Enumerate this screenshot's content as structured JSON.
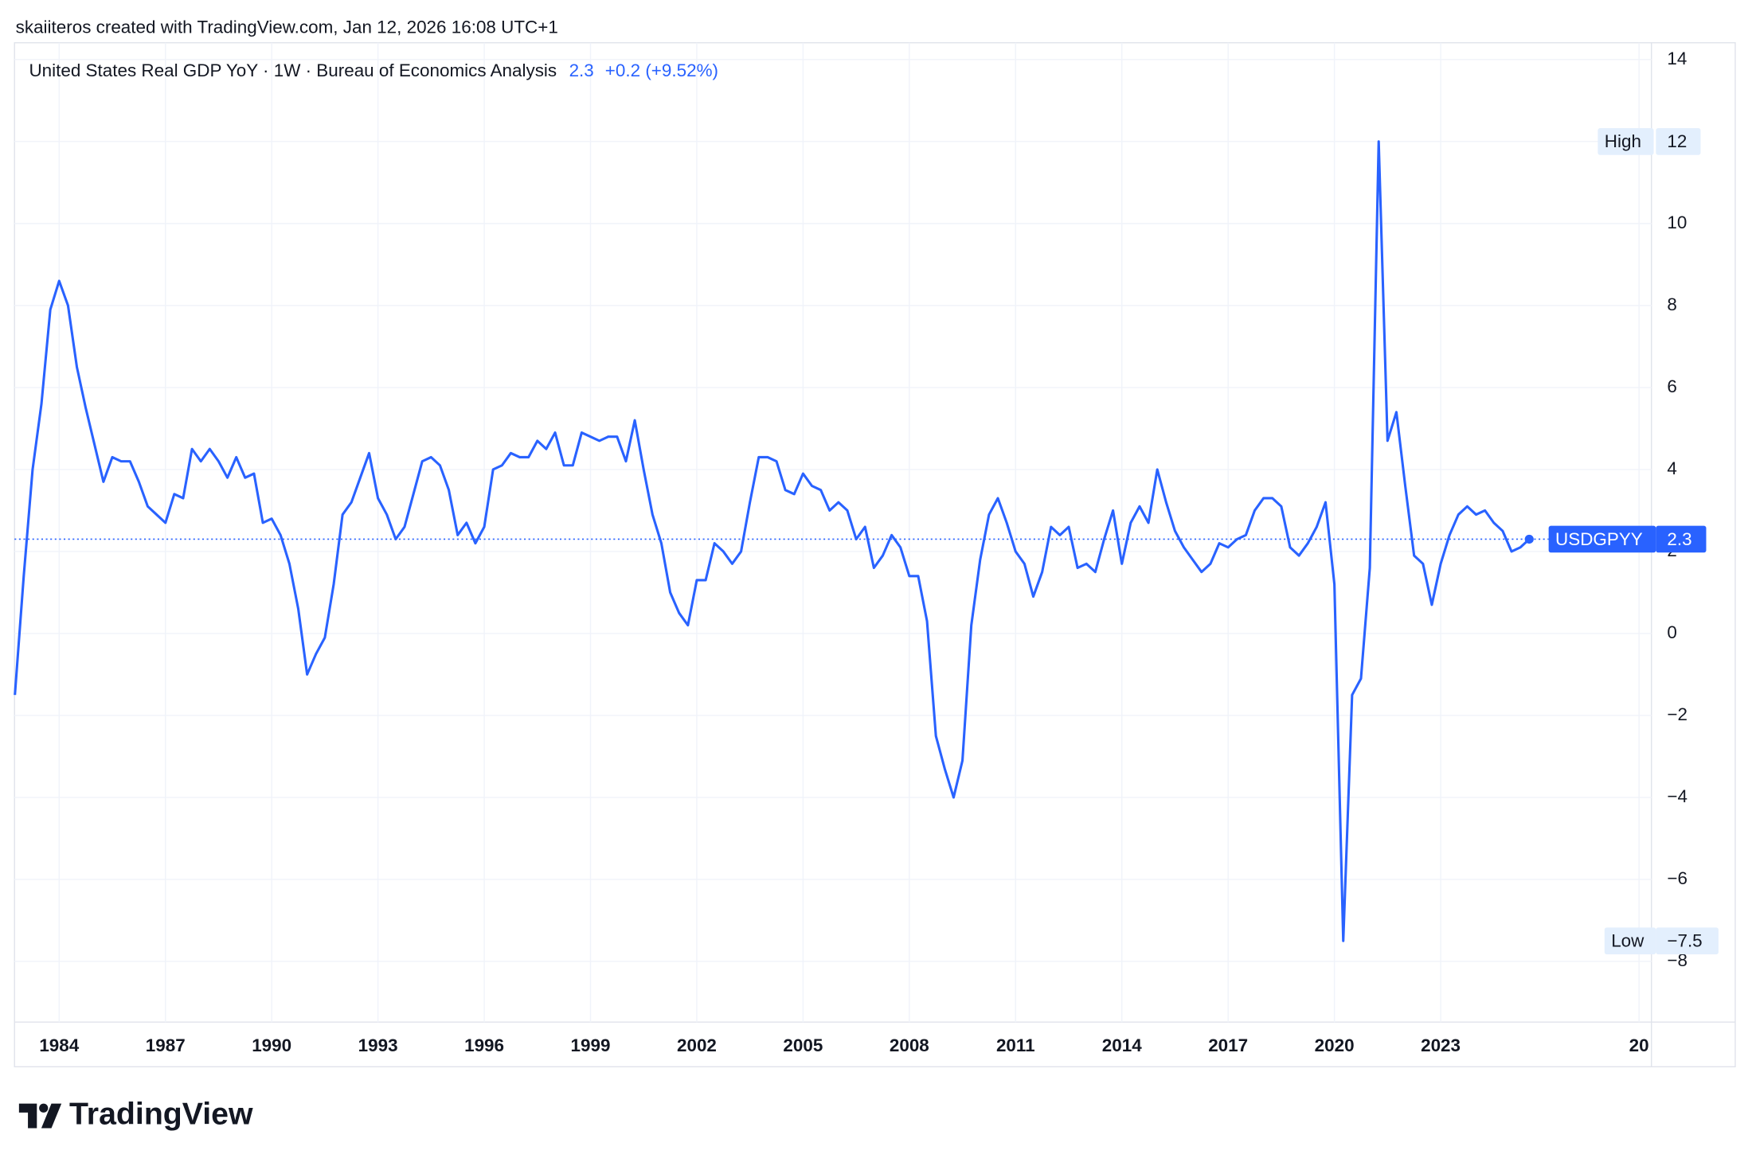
{
  "header": "skaiiteros created with TradingView.com, Jan 12, 2026 16:08 UTC+1",
  "footer": {
    "logo": "TradingView"
  },
  "chart_data": {
    "type": "line",
    "title": "United States Real GDP YoY · 1W · Bureau of Economics Analysis",
    "last_value": 2.3,
    "change_label": "+0.2 (+9.52%)",
    "color": "#2962ff",
    "grid": true,
    "xlim": [
      1982.74,
      2028.95
    ],
    "ylim": [
      -9.48,
      14.41
    ],
    "xticks": [
      1984,
      1987,
      1990,
      1993,
      1996,
      1999,
      2002,
      2005,
      2008,
      2011,
      2014,
      2017,
      2020,
      2023,
      {
        "value": 2028.6,
        "label": "20"
      }
    ],
    "yticks": [
      {
        "value": -8,
        "label": "−8"
      },
      {
        "value": -6,
        "label": "−6"
      },
      {
        "value": -4,
        "label": "−4"
      },
      {
        "value": -2,
        "label": "−2"
      },
      0,
      2,
      4,
      6,
      8,
      10,
      12,
      14
    ],
    "annotations": [
      {
        "label": "High",
        "value": 12
      },
      {
        "label": "Low",
        "value": -7.5,
        "value_label": "−7.5"
      },
      {
        "label": "USDGPYY",
        "value": 2.3
      }
    ],
    "x": [
      1982.75,
      1983,
      1983.25,
      1983.5,
      1983.75,
      1984,
      1984.25,
      1984.5,
      1984.75,
      1985,
      1985.25,
      1985.5,
      1985.75,
      1986,
      1986.25,
      1986.5,
      1986.75,
      1987,
      1987.25,
      1987.5,
      1987.75,
      1988,
      1988.25,
      1988.5,
      1988.75,
      1989,
      1989.25,
      1989.5,
      1989.75,
      1990,
      1990.25,
      1990.5,
      1990.75,
      1991,
      1991.25,
      1991.5,
      1991.75,
      1992,
      1992.25,
      1992.5,
      1992.75,
      1993,
      1993.25,
      1993.5,
      1993.75,
      1994,
      1994.25,
      1994.5,
      1994.75,
      1995,
      1995.25,
      1995.5,
      1995.75,
      1996,
      1996.25,
      1996.5,
      1996.75,
      1997,
      1997.25,
      1997.5,
      1997.75,
      1998,
      1998.25,
      1998.5,
      1998.75,
      1999,
      1999.25,
      1999.5,
      1999.75,
      2000,
      2000.25,
      2000.5,
      2000.75,
      2001,
      2001.25,
      2001.5,
      2001.75,
      2002,
      2002.25,
      2002.5,
      2002.75,
      2003,
      2003.25,
      2003.5,
      2003.75,
      2004,
      2004.25,
      2004.5,
      2004.75,
      2005,
      2005.25,
      2005.5,
      2005.75,
      2006,
      2006.25,
      2006.5,
      2006.75,
      2007,
      2007.25,
      2007.5,
      2007.75,
      2008,
      2008.25,
      2008.5,
      2008.75,
      2009,
      2009.25,
      2009.5,
      2009.75,
      2010,
      2010.25,
      2010.5,
      2010.75,
      2011,
      2011.25,
      2011.5,
      2011.75,
      2012,
      2012.25,
      2012.5,
      2012.75,
      2013,
      2013.25,
      2013.5,
      2013.75,
      2014,
      2014.25,
      2014.5,
      2014.75,
      2015,
      2015.25,
      2015.5,
      2015.75,
      2016,
      2016.25,
      2016.5,
      2016.75,
      2017,
      2017.25,
      2017.5,
      2017.75,
      2018,
      2018.25,
      2018.5,
      2018.75,
      2019,
      2019.25,
      2019.5,
      2019.75,
      2020,
      2020.25,
      2020.5,
      2020.75,
      2021,
      2021.25,
      2021.5,
      2021.75,
      2022,
      2022.25,
      2022.5,
      2022.75,
      2023,
      2023.25,
      2023.5,
      2023.75,
      2024,
      2024.25,
      2024.5,
      2024.75,
      2025,
      2025.25,
      2025.5
    ],
    "values": [
      -1.5,
      1.4,
      4.0,
      5.6,
      7.9,
      8.6,
      8.0,
      6.5,
      5.5,
      4.6,
      3.7,
      4.3,
      4.2,
      4.2,
      3.7,
      3.1,
      2.9,
      2.7,
      3.4,
      3.3,
      4.5,
      4.2,
      4.5,
      4.2,
      3.8,
      4.3,
      3.8,
      3.9,
      2.7,
      2.8,
      2.4,
      1.7,
      0.6,
      -1.0,
      -0.5,
      -0.1,
      1.2,
      2.9,
      3.2,
      3.8,
      4.4,
      3.3,
      2.9,
      2.3,
      2.6,
      3.4,
      4.2,
      4.3,
      4.1,
      3.5,
      2.4,
      2.7,
      2.2,
      2.6,
      4.0,
      4.1,
      4.4,
      4.3,
      4.3,
      4.7,
      4.5,
      4.9,
      4.1,
      4.1,
      4.9,
      4.8,
      4.7,
      4.8,
      4.8,
      4.2,
      5.2,
      4.0,
      2.9,
      2.2,
      1.0,
      0.5,
      0.2,
      1.3,
      1.3,
      2.2,
      2.0,
      1.7,
      2.0,
      3.2,
      4.3,
      4.3,
      4.2,
      3.5,
      3.4,
      3.9,
      3.6,
      3.5,
      3.0,
      3.2,
      3.0,
      2.3,
      2.6,
      1.6,
      1.9,
      2.4,
      2.1,
      1.4,
      1.4,
      0.3,
      -2.5,
      -3.3,
      -4.0,
      -3.1,
      0.2,
      1.8,
      2.9,
      3.3,
      2.7,
      2.0,
      1.7,
      0.9,
      1.5,
      2.6,
      2.4,
      2.6,
      1.6,
      1.7,
      1.5,
      2.3,
      3.0,
      1.7,
      2.7,
      3.1,
      2.7,
      4.0,
      3.2,
      2.5,
      2.1,
      1.8,
      1.5,
      1.7,
      2.2,
      2.1,
      2.3,
      2.4,
      3.0,
      3.3,
      3.3,
      3.1,
      2.1,
      1.9,
      2.2,
      2.6,
      3.2,
      1.2,
      -7.5,
      -1.5,
      -1.1,
      1.6,
      12.0,
      4.7,
      5.4,
      3.6,
      1.9,
      1.7,
      0.7,
      1.7,
      2.4,
      2.9,
      3.1,
      2.9,
      3.0,
      2.7,
      2.5,
      2.0,
      2.1,
      2.3
    ]
  }
}
